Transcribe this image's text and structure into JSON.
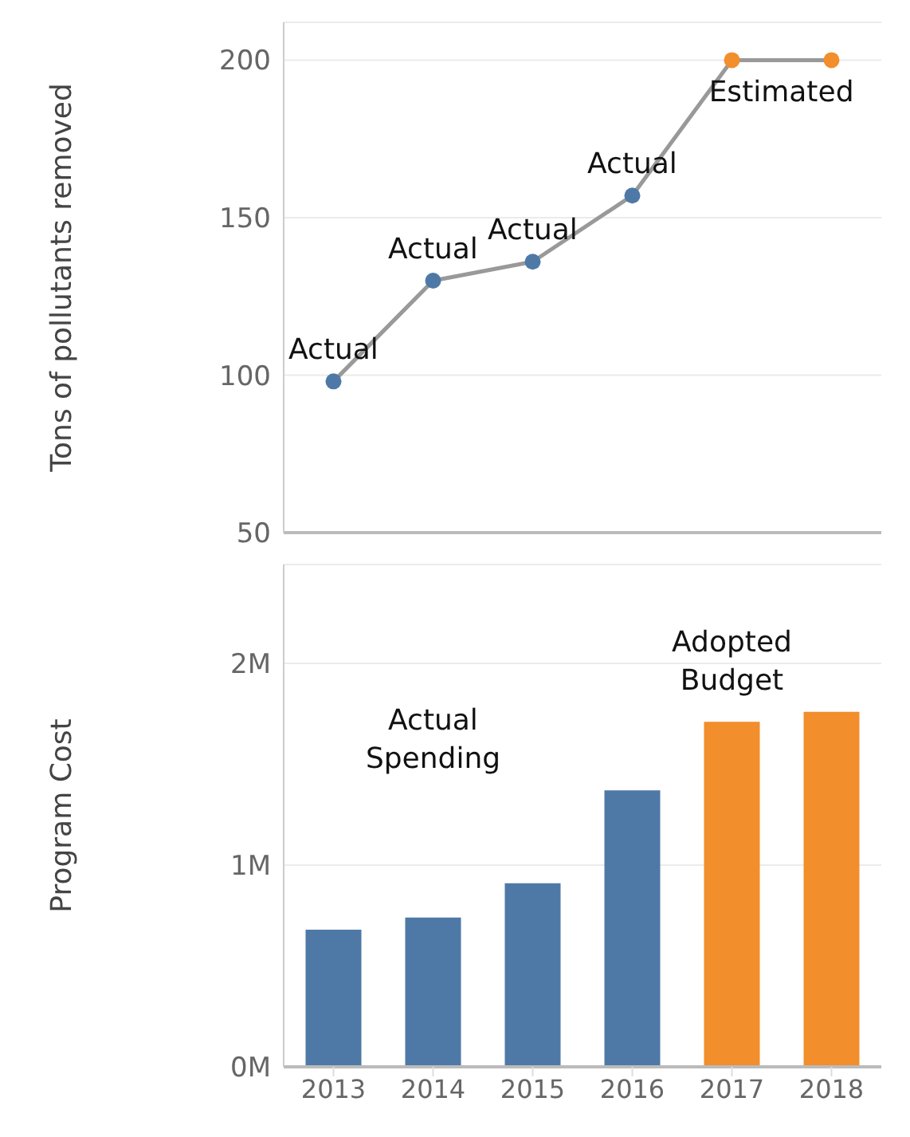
{
  "chart_data": [
    {
      "type": "line",
      "ylabel": "Tons of pollutants removed",
      "categories": [
        "2013",
        "2014",
        "2015",
        "2016",
        "2017",
        "2018"
      ],
      "series": [
        {
          "color": "#999999",
          "colors": [
            "#4e79a7",
            "#4e79a7",
            "#4e79a7",
            "#4e79a7",
            "#f28e2b",
            "#f28e2b"
          ],
          "values": [
            98,
            130,
            136,
            157,
            200,
            200
          ]
        }
      ],
      "ylim": [
        50,
        212
      ],
      "yticks": [
        50,
        100,
        150,
        200
      ],
      "grid": "y",
      "marker": "circle",
      "tick_labels": "y",
      "annotations": [
        {
          "text": "Actual",
          "x": "2013",
          "y": 98
        },
        {
          "text": "Actual",
          "x": "2014",
          "y": 130
        },
        {
          "text": "Actual",
          "x": "2015",
          "y": 136
        },
        {
          "text": "Actual",
          "x": "2016",
          "y": 157
        },
        {
          "text": "Estimated",
          "x": "2018",
          "y": 200
        }
      ]
    },
    {
      "type": "bar",
      "ylabel": "Program Cost",
      "categories": [
        "2013",
        "2014",
        "2015",
        "2016",
        "2017",
        "2018"
      ],
      "series": [
        {
          "colors": [
            "#4e79a7",
            "#4e79a7",
            "#4e79a7",
            "#4e79a7",
            "#f28e2b",
            "#f28e2b"
          ],
          "values": [
            680000,
            740000,
            910000,
            1370000,
            1710000,
            1760000
          ]
        }
      ],
      "ylim": [
        0,
        2490000
      ],
      "yticks": [
        {
          "value": 0,
          "label": "0M"
        },
        {
          "value": 1000000,
          "label": "1M"
        },
        {
          "value": 2000000,
          "label": "2M"
        }
      ],
      "grid": "y",
      "annotations": [
        "Actual Spending",
        "Adopted Budget"
      ]
    }
  ]
}
